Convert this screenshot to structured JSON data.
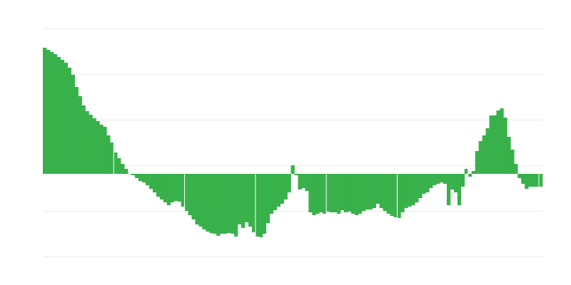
{
  "chart_data": {
    "type": "bar",
    "title": "",
    "xlabel": "",
    "ylabel": "",
    "ylim": [
      -116,
      204
    ],
    "gridlines": [
      204,
      140,
      76,
      12,
      -52,
      -116
    ],
    "grid": true,
    "legend": "none",
    "colors": {
      "bar": "#39b14b",
      "grid": "#ebebeb",
      "background": "#ffffff"
    },
    "values": [
      177,
      174,
      171,
      168,
      164,
      160,
      156,
      149,
      139,
      122,
      109,
      96,
      88,
      83,
      78,
      74,
      69,
      66,
      54,
      44,
      30,
      22,
      14,
      7,
      0,
      -2,
      -6,
      -10,
      -12,
      -16,
      -21,
      -26,
      -32,
      -36,
      -40,
      -44,
      -40,
      -38,
      -39,
      -46,
      -52,
      -58,
      -64,
      -71,
      -74,
      -78,
      -81,
      -83,
      -84,
      -87,
      -84,
      -84,
      -83,
      -84,
      -88,
      -71,
      -76,
      -68,
      -74,
      -82,
      -88,
      -89,
      -84,
      -69,
      -56,
      -51,
      -46,
      -42,
      -36,
      -26,
      12,
      -2,
      -22,
      -20,
      -24,
      -54,
      -58,
      -56,
      -54,
      -56,
      -53,
      -54,
      -54,
      -56,
      -51,
      -54,
      -53,
      -56,
      -58,
      -56,
      -52,
      -50,
      -50,
      -48,
      -42,
      -48,
      -52,
      -56,
      -59,
      -61,
      -62,
      -54,
      -48,
      -46,
      -44,
      -40,
      -34,
      -28,
      -26,
      -20,
      -16,
      -14,
      -12,
      -14,
      -44,
      -22,
      -26,
      -44,
      -18,
      7,
      -4,
      4,
      32,
      46,
      54,
      64,
      82,
      82,
      89,
      92,
      79,
      52,
      34,
      14,
      -6,
      -14,
      -21,
      -18,
      -18,
      -18,
      -18
    ]
  }
}
